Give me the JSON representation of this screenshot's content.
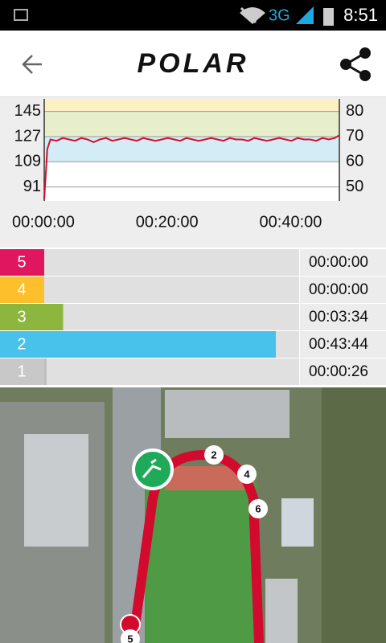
{
  "status_bar": {
    "network": "3G",
    "time": "8:51"
  },
  "header": {
    "logo": "POLAR"
  },
  "chart_data": [
    {
      "type": "line",
      "x": [
        0,
        15,
        30,
        60,
        120,
        180,
        240,
        300,
        360,
        420,
        480,
        540,
        600,
        660,
        720,
        780,
        840,
        900,
        960,
        1020,
        1080,
        1140,
        1200,
        1260,
        1320,
        1380,
        1440,
        1500,
        1560,
        1620,
        1680,
        1740,
        1800,
        1860,
        1920,
        1980,
        2040,
        2100,
        2160,
        2220,
        2280,
        2340,
        2400,
        2460,
        2520,
        2580,
        2640,
        2700,
        2760,
        2820,
        2864
      ],
      "values": [
        82,
        100,
        118,
        125,
        124,
        126,
        125,
        124,
        126,
        125,
        123,
        125,
        126,
        124,
        125,
        126,
        125,
        124,
        126,
        125,
        124,
        125,
        126,
        125,
        124,
        126,
        125,
        124,
        125,
        126,
        125,
        124,
        126,
        125,
        125,
        124,
        126,
        125,
        124,
        125,
        126,
        125,
        124,
        126,
        125,
        125,
        124,
        126,
        125,
        126,
        128
      ],
      "color": "#d0102e",
      "xlim": [
        0,
        2864
      ],
      "xticks": [
        {
          "value": 0,
          "label": "00:00:00"
        },
        {
          "value": 1200,
          "label": "00:20:00"
        },
        {
          "value": 2400,
          "label": "00:40:00"
        }
      ],
      "ylim": [
        81,
        154
      ],
      "yticks": [
        91,
        109,
        127,
        145
      ],
      "y2lim": [
        44.4,
        85
      ],
      "y2ticks": [
        50,
        60,
        70,
        80
      ],
      "band_colors": [
        "#ffffff",
        "#d4ecf6",
        "#e6eecb",
        "#fdf0c3"
      ],
      "grid": true
    },
    {
      "type": "hbar",
      "categories": [
        "5",
        "4",
        "3",
        "2",
        "1"
      ],
      "values": [
        0,
        0,
        214,
        2624,
        26
      ],
      "value_labels": [
        "00:00:00",
        "00:00:00",
        "00:03:34",
        "00:43:44",
        "00:00:26"
      ],
      "colors": [
        "#e0165f",
        "#fdc02c",
        "#8db63f",
        "#48c2ea",
        "#c8c8c8"
      ],
      "bar_colors": [
        "#e0165f",
        "#fdc02c",
        "#8db63f",
        "#48c2ea",
        "#bdbdbd"
      ],
      "xlim": [
        0,
        2888
      ]
    }
  ],
  "map": {
    "markers": [
      "2",
      "4",
      "6",
      "5"
    ]
  }
}
